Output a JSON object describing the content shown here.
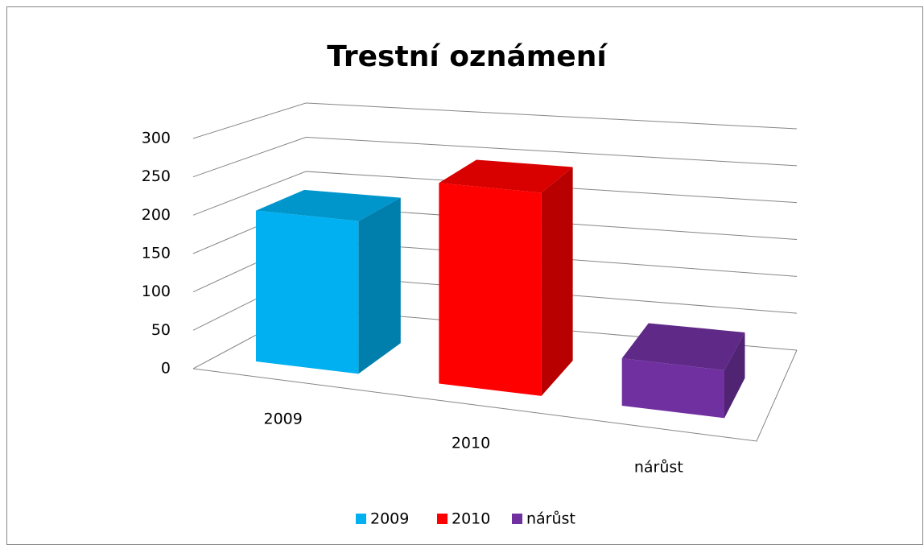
{
  "chart_data": {
    "type": "bar3d",
    "title": "Trestní oznámení",
    "categories": [
      "2009",
      "2010",
      "nárůst"
    ],
    "values": [
      200,
      260,
      60
    ],
    "colors": [
      "#00b0f0",
      "#ff0000",
      "#7030a0"
    ],
    "ylim": [
      0,
      300
    ],
    "yticks": [
      0,
      50,
      100,
      150,
      200,
      250,
      300
    ],
    "grid": true,
    "legend": "bottom"
  }
}
